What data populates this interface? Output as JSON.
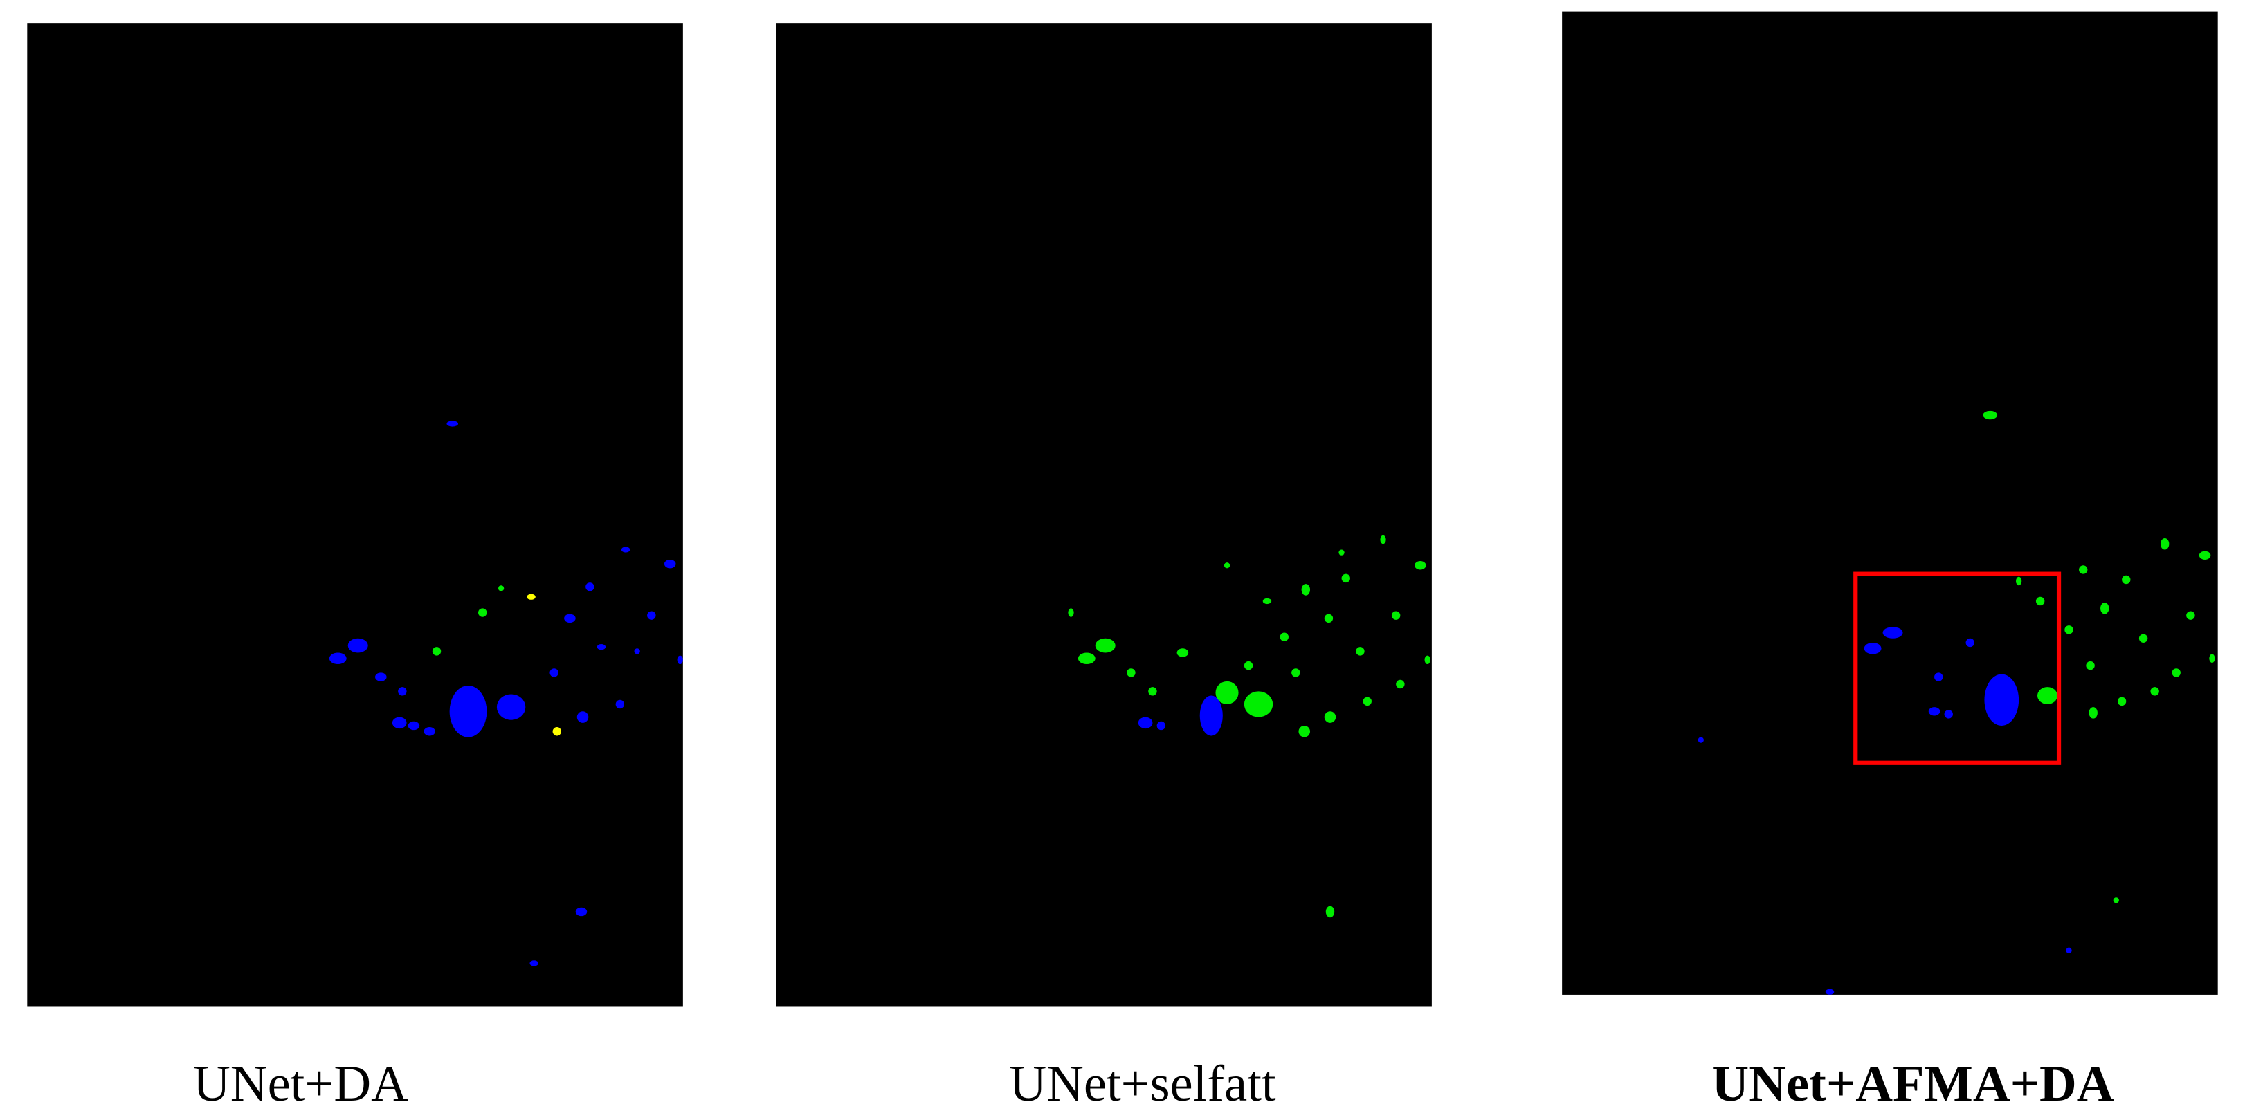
{
  "panels": [
    {
      "caption": "UNet+DA"
    },
    {
      "caption": "UNet+selfatt"
    },
    {
      "caption": "UNet+AFMA+DA"
    }
  ]
}
